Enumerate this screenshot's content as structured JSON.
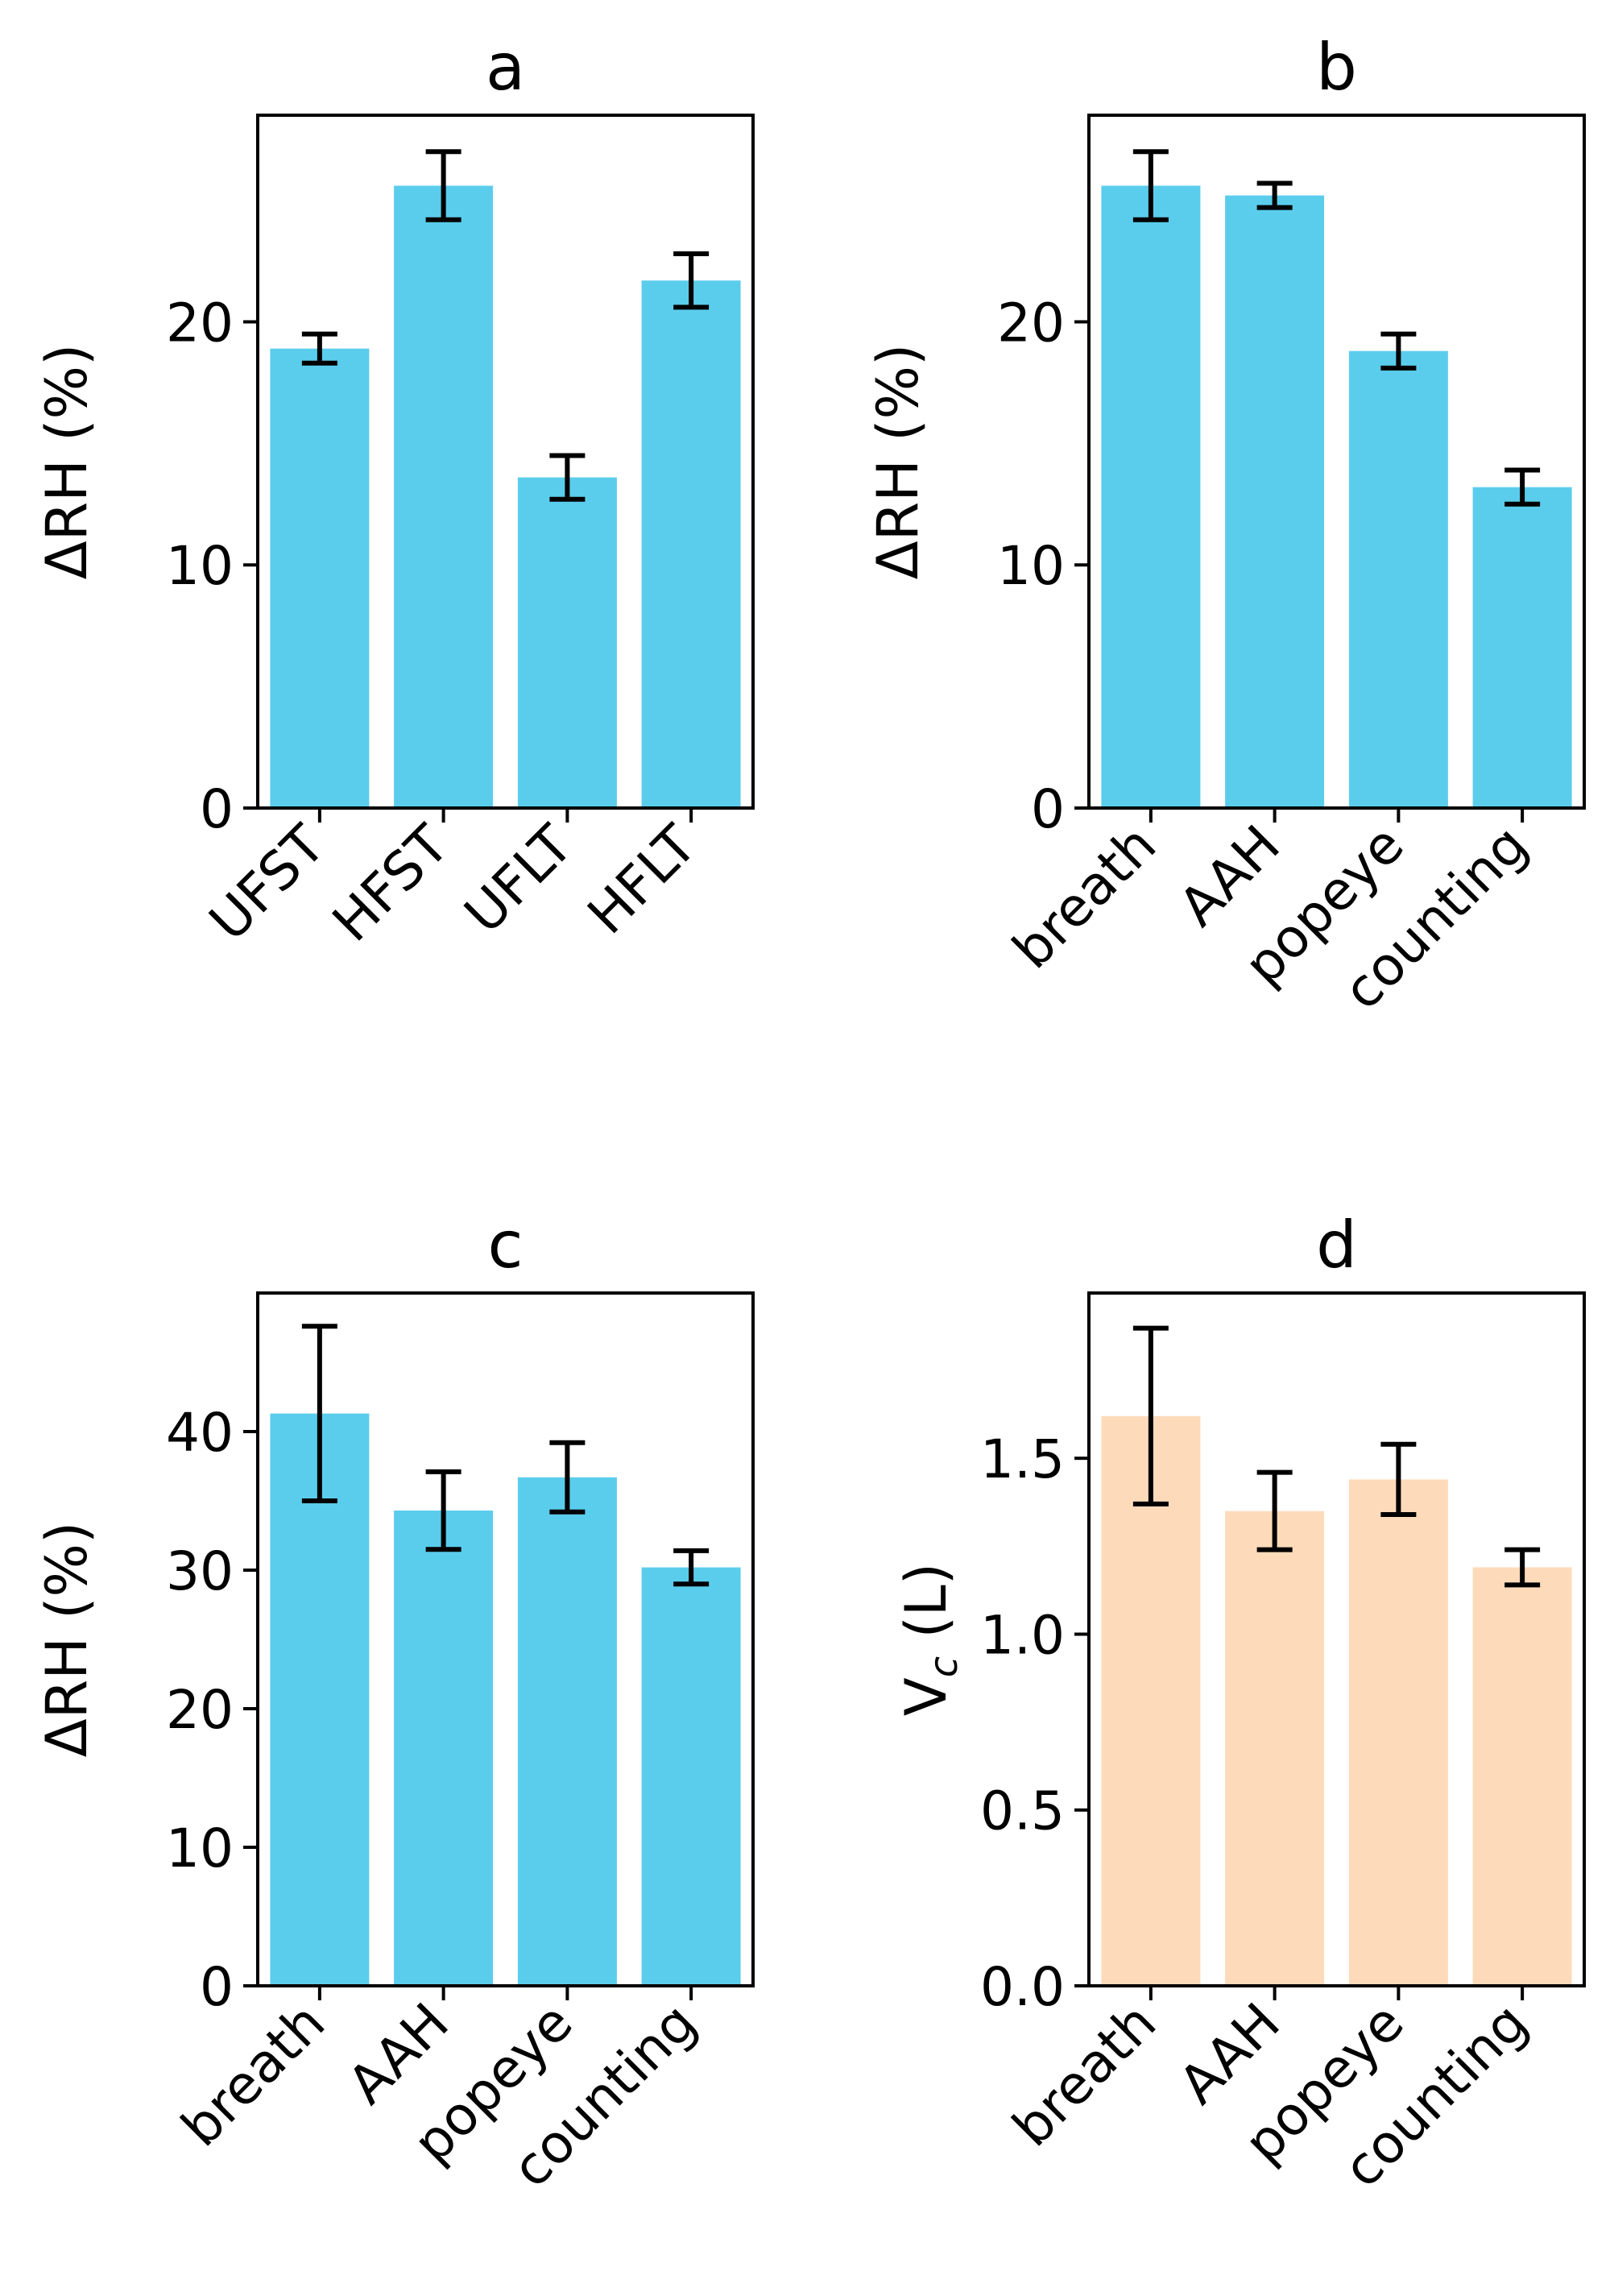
{
  "chart_data": [
    {
      "panel": "a",
      "type": "bar",
      "title": "a",
      "ylabel": "ΔRH (%)",
      "ylabel_main": "ΔRH (%)",
      "ylabel_sub": "",
      "ylabel_tail": "",
      "categories": [
        "UFST",
        "HFST",
        "UFLT",
        "HFLT"
      ],
      "values": [
        18.9,
        25.6,
        13.6,
        21.7
      ],
      "errors": [
        0.6,
        1.4,
        0.9,
        1.1
      ],
      "ylim": [
        0,
        28.5
      ],
      "yticks": [
        0,
        10,
        20
      ],
      "ytick_labels": [
        "0",
        "10",
        "20"
      ],
      "color": "#5bcdec",
      "label_rotation": -45,
      "ticks_offset": 0
    },
    {
      "panel": "b",
      "type": "bar",
      "title": "b",
      "ylabel": "ΔRH (%)",
      "ylabel_main": "ΔRH (%)",
      "ylabel_sub": "",
      "ylabel_tail": "",
      "categories": [
        "breath",
        "AAH",
        "popeye",
        "counting"
      ],
      "values": [
        25.6,
        25.2,
        18.8,
        13.2
      ],
      "errors": [
        1.4,
        0.5,
        0.7,
        0.7
      ],
      "ylim": [
        0,
        28.5
      ],
      "yticks": [
        0,
        10,
        20
      ],
      "ytick_labels": [
        "0",
        "10",
        "20"
      ],
      "color": "#5bcdec",
      "label_rotation": -45,
      "ticks_offset": 0
    },
    {
      "panel": "c",
      "type": "bar",
      "title": "c",
      "ylabel": "ΔRH (%)",
      "ylabel_main": "ΔRH (%)",
      "ylabel_sub": "",
      "ylabel_tail": "",
      "categories": [
        "breath",
        "AAH",
        "popeye",
        "counting"
      ],
      "values": [
        41.3,
        34.3,
        36.7,
        30.2
      ],
      "errors": [
        6.3,
        2.8,
        2.5,
        1.2
      ],
      "ylim": [
        0,
        50
      ],
      "yticks": [
        0,
        10,
        20,
        30,
        40
      ],
      "ytick_labels": [
        "0",
        "10",
        "20",
        "30",
        "40"
      ],
      "color": "#5bcdec",
      "label_rotation": -45,
      "ticks_offset": 0
    },
    {
      "panel": "d",
      "type": "bar",
      "title": "d",
      "ylabel": "Vc (L)",
      "ylabel_main": "V",
      "ylabel_sub": "c",
      "ylabel_tail": " (L)",
      "categories": [
        "breath",
        "AAH",
        "popeye",
        "counting"
      ],
      "values": [
        1.62,
        1.35,
        1.44,
        1.19
      ],
      "errors": [
        0.25,
        0.11,
        0.1,
        0.05
      ],
      "ylim": [
        0,
        1.97
      ],
      "yticks": [
        0,
        0.5,
        1.0,
        1.5
      ],
      "ytick_labels": [
        "0.0",
        "0.5",
        "1.0",
        "1.5"
      ],
      "color": "#fddbba",
      "label_rotation": -45,
      "ticks_offset": 0
    }
  ]
}
